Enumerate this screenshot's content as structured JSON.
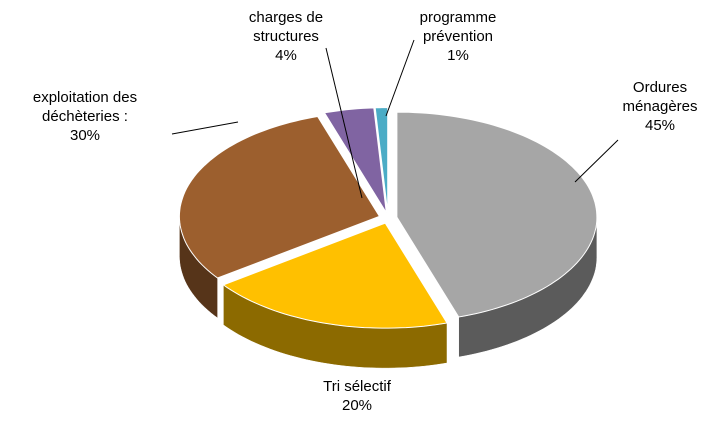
{
  "chart_data": {
    "type": "pie",
    "categories": [
      "Ordures ménagères",
      "Tri sélectif",
      "exploitation des déchèteries :",
      "charges de structures",
      "programme prévention"
    ],
    "values": [
      45,
      20,
      30,
      4,
      1
    ],
    "value_labels": [
      "45%",
      "20%",
      "30%",
      "4%",
      "1%"
    ],
    "colors": [
      "#a6a6a6",
      "#ffc000",
      "#9c5f2e",
      "#8064a2",
      "#4bacc6"
    ]
  }
}
